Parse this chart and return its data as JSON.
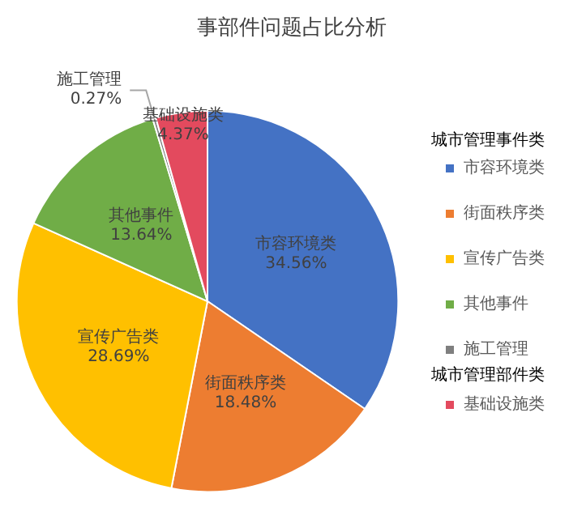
{
  "chart_data": {
    "type": "pie",
    "title": "事部件问题占比分析",
    "categories": [
      "市容环境类",
      "街面秩序类",
      "宣传广告类",
      "其他事件",
      "施工管理",
      "基础设施类"
    ],
    "values": [
      34.56,
      18.48,
      28.69,
      13.64,
      0.27,
      4.37
    ],
    "colors": [
      "#4472c4",
      "#ed7d31",
      "#ffc000",
      "#70ad47",
      "#7f7f7f",
      "#e34a5e"
    ],
    "legend": "right",
    "legend_title": "城市管理事件类",
    "annotations": [
      "城市管理部件类"
    ],
    "value_labels": [
      "34.56%",
      "18.48%",
      "28.69%",
      "13.64%",
      "0.27%",
      "4.37%"
    ]
  }
}
